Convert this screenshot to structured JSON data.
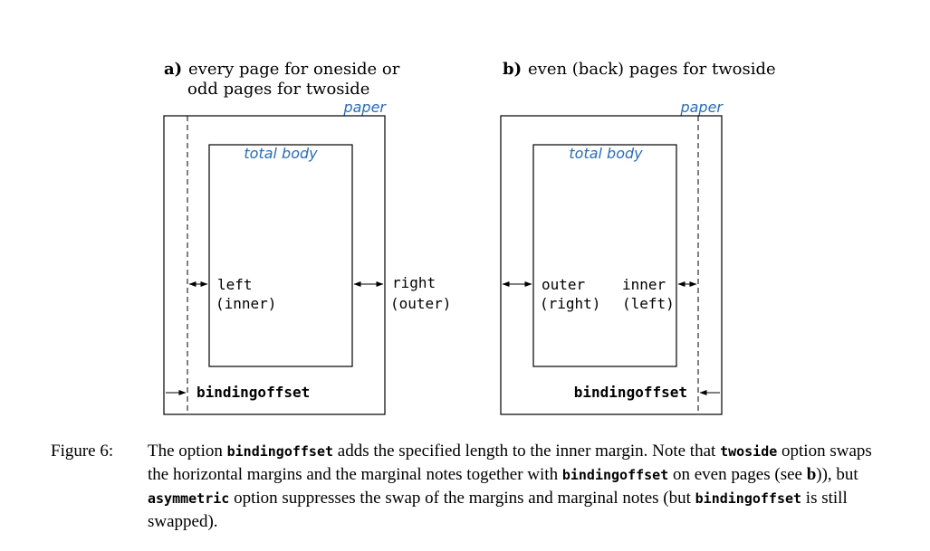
{
  "panel_a": {
    "letter": "a)",
    "title_line1": "every page for oneside or",
    "title_line2": "odd pages for twoside",
    "paper_label": "paper",
    "body_label": "total body",
    "left_label": "left",
    "left_sub": "(inner)",
    "right_label": "right",
    "right_sub": "(outer)",
    "binding_label": "bindingoffset"
  },
  "panel_b": {
    "letter": "b)",
    "title_line1": "even (back) pages for twoside",
    "paper_label": "paper",
    "body_label": "total body",
    "outer_label": "outer",
    "outer_sub": "(right)",
    "inner_label": "inner",
    "inner_sub": "(left)",
    "binding_label": "bindingoffset"
  },
  "caption": {
    "label": "Figure 6:",
    "p1": "The option ",
    "c1": "bindingoffset",
    "p2": " adds the specified length to the inner margin. Note that ",
    "c2": "twoside",
    "p3": " option swaps the horizontal margins and the marginal notes together with ",
    "c3": "bindingoffset",
    "p4": " on even pages (see ",
    "b1": "b",
    "p5": ")), but ",
    "c4": "asymmetric",
    "p6": " option suppresses the swap of the margins and marginal notes (but ",
    "c5": "bindingoffset",
    "p7": " is still swapped)."
  },
  "colors": {
    "label_blue": "#2a6db5",
    "line": "#000000"
  }
}
